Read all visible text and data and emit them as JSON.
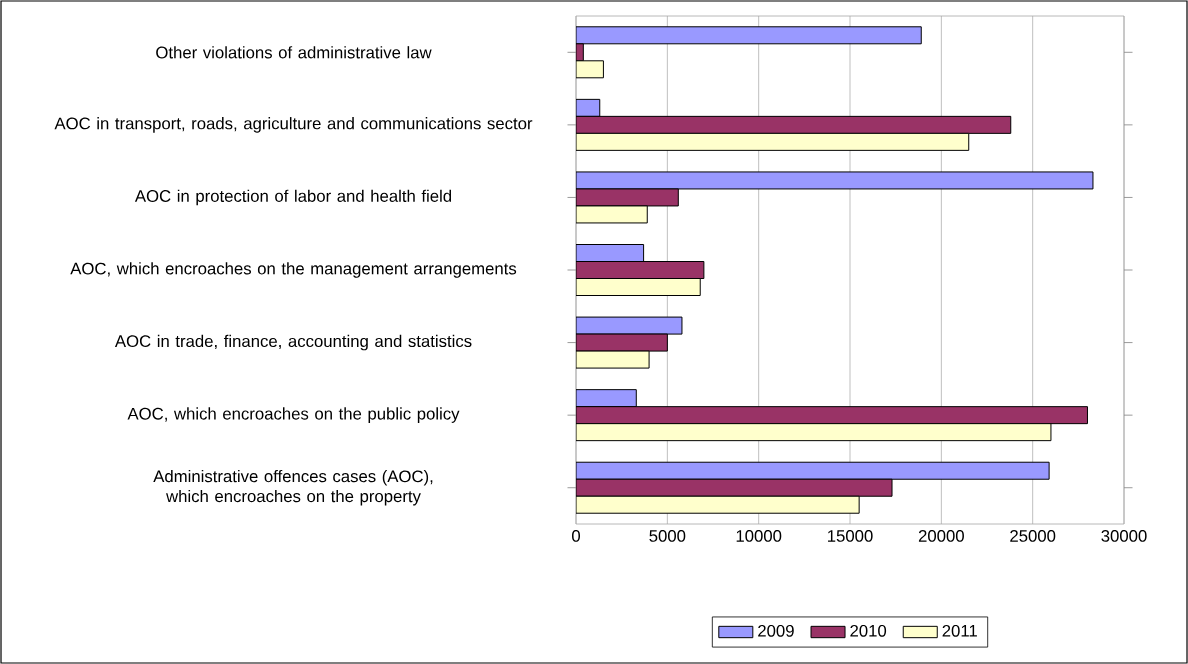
{
  "chart_data": {
    "type": "bar",
    "orientation": "horizontal",
    "categories": [
      "Other violations of administrative law",
      "AOC in transport, roads, agriculture and communications sector",
      "AOC in protection of labor and health field",
      "AOC, which encroaches on the management arrangements",
      "AOC in trade, finance, accounting and statistics",
      "AOC, which encroaches on the public policy",
      "Administrative offences cases (AOC), which encroaches on the property"
    ],
    "series": [
      {
        "name": "2009",
        "color": "#9999ff",
        "values": [
          18900,
          1300,
          28300,
          3700,
          5800,
          3300,
          25900
        ]
      },
      {
        "name": "2010",
        "color": "#993366",
        "values": [
          400,
          23800,
          5600,
          7000,
          5000,
          28000,
          17300
        ]
      },
      {
        "name": "2011",
        "color": "#ffffcc",
        "values": [
          1500,
          21500,
          3900,
          6800,
          4000,
          26000,
          15500
        ]
      }
    ],
    "xlim": [
      0,
      30000
    ],
    "xticks": [
      0,
      5000,
      10000,
      15000,
      20000,
      25000,
      30000
    ],
    "grid": "x",
    "legend": "bottom"
  }
}
